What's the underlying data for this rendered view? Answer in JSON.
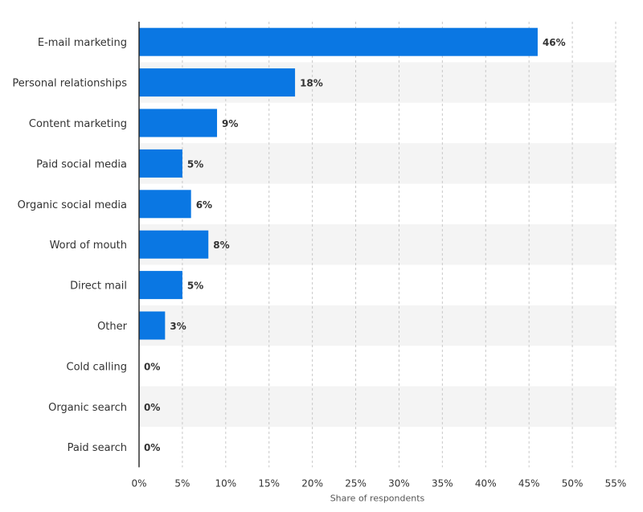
{
  "chart_data": {
    "type": "bar",
    "orientation": "horizontal",
    "categories": [
      "E-mail marketing",
      "Personal relationships",
      "Content marketing",
      "Paid social media",
      "Organic social media",
      "Word of mouth",
      "Direct mail",
      "Other",
      "Cold calling",
      "Organic search",
      "Paid search"
    ],
    "values": [
      46,
      18,
      9,
      5,
      6,
      8,
      5,
      3,
      0,
      0,
      0
    ],
    "value_labels": [
      "46%",
      "18%",
      "9%",
      "5%",
      "6%",
      "8%",
      "5%",
      "3%",
      "0%",
      "0%",
      "0%"
    ],
    "x_ticks": [
      "0%",
      "5%",
      "10%",
      "15%",
      "20%",
      "25%",
      "30%",
      "35%",
      "40%",
      "45%",
      "50%",
      "55%"
    ],
    "xlim": [
      0,
      55
    ],
    "xlabel": "Share of respondents",
    "grid": true,
    "colors": {
      "bar": "#0a77e3",
      "band": "#f4f4f4",
      "grid": "#c8c8c8"
    }
  }
}
